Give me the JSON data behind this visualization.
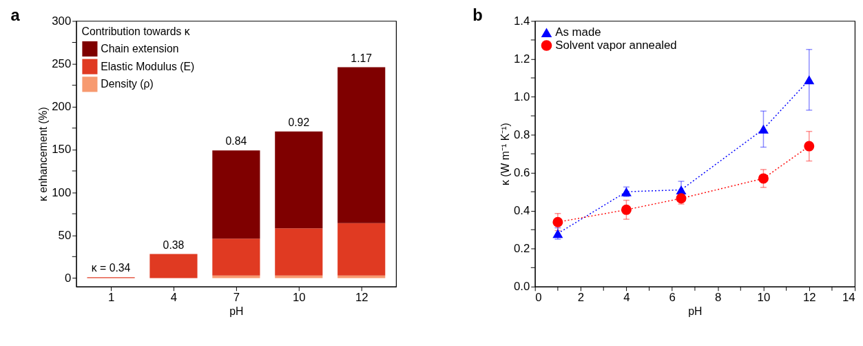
{
  "chart_data": [
    {
      "type": "bar",
      "title": "a",
      "xlabel": "pH",
      "ylabel": "κ enhancement (%)",
      "legend_title": "Contribution towards κ",
      "stacked": true,
      "legend": "top left",
      "grid": false,
      "categories": [
        "1",
        "4",
        "7",
        "10",
        "12"
      ],
      "series": [
        {
          "name": "Density (ρ)",
          "color": "#f79a70",
          "values": [
            0,
            0,
            3,
            3,
            3
          ]
        },
        {
          "name": "Elastic Modulus (E)",
          "color": "#e03a22",
          "values": [
            1,
            28,
            43,
            55,
            61
          ]
        },
        {
          "name": "Chain extension",
          "color": "#7f0000",
          "values": [
            0,
            0,
            103,
            113,
            182
          ]
        }
      ],
      "annotations": [
        {
          "text": "κ = 0.34",
          "x": "1",
          "y": 1
        },
        {
          "text": "0.38",
          "x": "4",
          "y": 28
        },
        {
          "text": "0.84",
          "x": "7",
          "y": 149
        },
        {
          "text": "0.92",
          "x": "10",
          "y": 171
        },
        {
          "text": "1.17",
          "x": "12",
          "y": 246
        }
      ],
      "ylim": [
        -10,
        300
      ],
      "yticks": [
        0,
        {
          "value": 25,
          "label": null
        },
        50,
        {
          "value": 75,
          "label": null
        },
        100,
        {
          "value": 125,
          "label": null
        },
        150,
        {
          "value": 175,
          "label": null
        },
        200,
        {
          "value": 225,
          "label": null
        },
        250,
        {
          "value": 275,
          "label": null
        },
        300
      ]
    },
    {
      "type": "line",
      "title": "b",
      "xlabel": "pH",
      "ylabel": "κ (W m⁻¹ K⁻¹)",
      "legend": "top left",
      "grid": false,
      "line_style": "dotted",
      "series": [
        {
          "name": "As made",
          "color": "#0000ff",
          "marker": "triangle",
          "x": [
            1,
            4,
            6.4,
            10,
            12
          ],
          "values": [
            0.28,
            0.5,
            0.51,
            0.83,
            1.09
          ],
          "errors": [
            0.03,
            0.025,
            0.045,
            0.095,
            0.16
          ]
        },
        {
          "name": "Solvent vapor annealed",
          "color": "#ff0000",
          "marker": "circle",
          "x": [
            1,
            4,
            6.4,
            10,
            12
          ],
          "values": [
            0.34,
            0.405,
            0.465,
            0.57,
            0.74
          ],
          "errors": [
            0.045,
            0.05,
            0.03,
            0.047,
            0.078
          ]
        }
      ],
      "xlim": [
        0,
        14
      ],
      "xticks": [
        0,
        {
          "value": 1,
          "label": null
        },
        2,
        {
          "value": 3,
          "label": null
        },
        4,
        {
          "value": 5,
          "label": null
        },
        6,
        {
          "value": 7,
          "label": null
        },
        8,
        {
          "value": 9,
          "label": null
        },
        10,
        {
          "value": 11,
          "label": null
        },
        12,
        {
          "value": 13,
          "label": null
        },
        14
      ],
      "ylim": [
        0,
        1.4
      ],
      "yticks": [
        {
          "value": 0,
          "label": "0.0"
        },
        {
          "value": 0.1,
          "label": null
        },
        {
          "value": 0.2,
          "label": "0.2"
        },
        {
          "value": 0.3,
          "label": null
        },
        {
          "value": 0.4,
          "label": "0.4"
        },
        {
          "value": 0.5,
          "label": null
        },
        {
          "value": 0.6,
          "label": "0.6"
        },
        {
          "value": 0.7,
          "label": null
        },
        {
          "value": 0.8,
          "label": "0.8"
        },
        {
          "value": 0.9,
          "label": null
        },
        {
          "value": 1.0,
          "label": "1.0"
        },
        {
          "value": 1.1,
          "label": null
        },
        {
          "value": 1.2,
          "label": "1.2"
        },
        {
          "value": 1.3,
          "label": null
        },
        {
          "value": 1.4,
          "label": "1.4"
        }
      ]
    }
  ]
}
